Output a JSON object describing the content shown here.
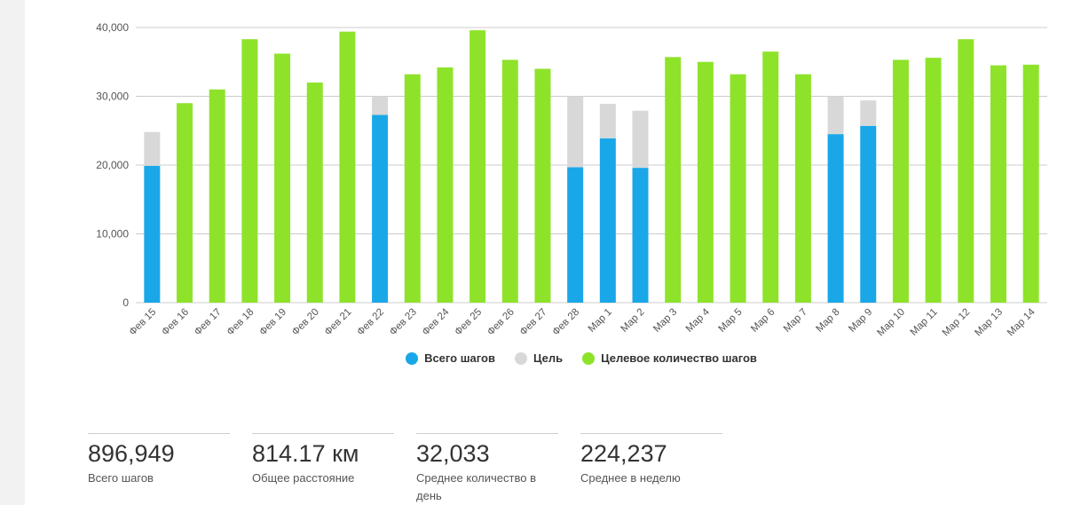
{
  "chart_data": {
    "type": "bar",
    "stacked": true,
    "categories": [
      "Фев 15",
      "Фев 16",
      "Фев 17",
      "Фев 18",
      "Фев 19",
      "Фев 20",
      "Фев 21",
      "Фев 22",
      "Фев 23",
      "Фев 24",
      "Фев 25",
      "Фев 26",
      "Фев 27",
      "Фев 28",
      "Мар 1",
      "Мар 2",
      "Мар 3",
      "Мар 4",
      "Мар 5",
      "Мар 6",
      "Мар 7",
      "Мар 8",
      "Мар 9",
      "Мар 10",
      "Мар 11",
      "Мар 12",
      "Мар 13",
      "Мар 14"
    ],
    "series": [
      {
        "name": "Всего шагов",
        "color": "#1aa7e8",
        "values": [
          19900,
          0,
          0,
          0,
          0,
          0,
          0,
          27300,
          0,
          0,
          0,
          0,
          0,
          19700,
          23900,
          19600,
          0,
          0,
          0,
          0,
          0,
          24500,
          25700,
          0,
          0,
          0,
          0,
          0
        ]
      },
      {
        "name": "Цель",
        "color": "#d8d8d8",
        "values": [
          4900,
          0,
          0,
          0,
          0,
          0,
          0,
          2700,
          0,
          0,
          0,
          0,
          0,
          10300,
          5000,
          8300,
          0,
          0,
          0,
          0,
          0,
          5500,
          3700,
          0,
          0,
          0,
          0,
          0
        ]
      },
      {
        "name": "Целевое количество шагов",
        "color": "#8ee32a",
        "values": [
          0,
          29000,
          31000,
          38300,
          36200,
          32000,
          39400,
          0,
          33200,
          34200,
          39600,
          35300,
          34000,
          0,
          0,
          0,
          35700,
          35000,
          33200,
          36500,
          33200,
          0,
          0,
          35300,
          35600,
          38300,
          34500,
          34600
        ]
      }
    ],
    "ylim": [
      0,
      40000
    ],
    "yticks": [
      0,
      10000,
      20000,
      30000,
      40000
    ],
    "ytick_labels": [
      "0",
      "10,000",
      "20,000",
      "30,000",
      "40,000"
    ],
    "title": "",
    "xlabel": "",
    "ylabel": "",
    "legend_position": "bottom-center"
  },
  "stats": [
    {
      "value": "896,949",
      "label": "Всего шагов"
    },
    {
      "value": "814.17 км",
      "label": "Общее расстояние"
    },
    {
      "value": "32,033",
      "label": "Среднее количество в день"
    },
    {
      "value": "224,237",
      "label": "Среднее в неделю"
    }
  ]
}
